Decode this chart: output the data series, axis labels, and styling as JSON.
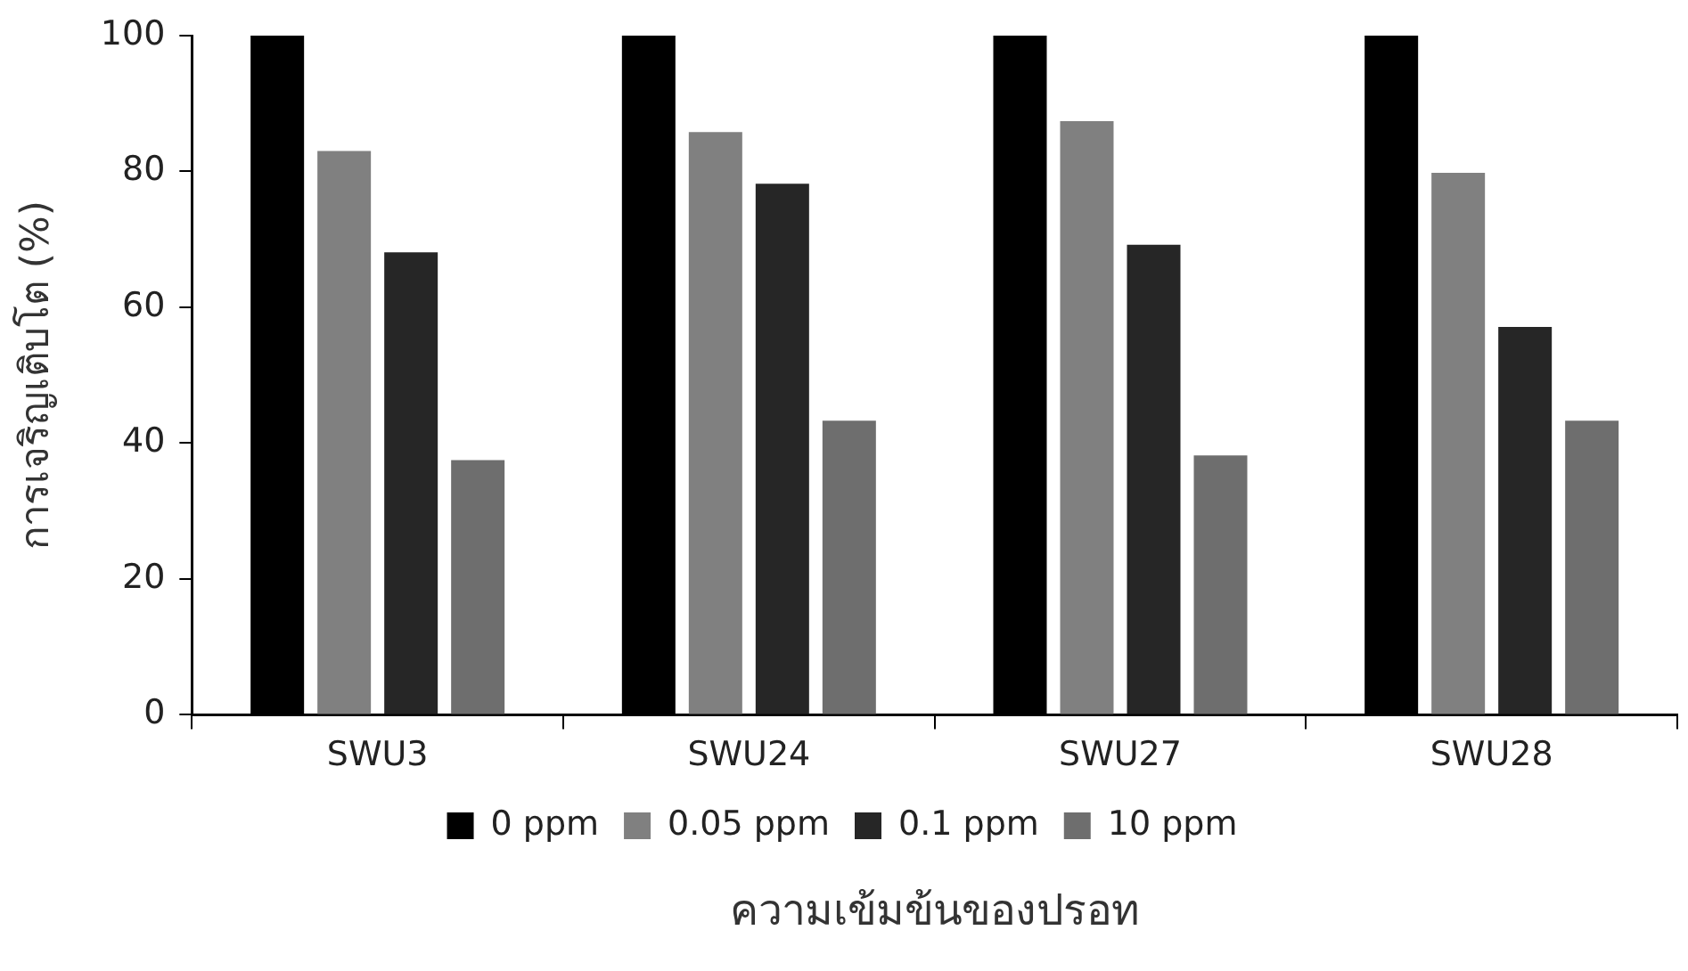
{
  "chart_data": {
    "type": "bar",
    "xlabel": "ความเข้มข้นของปรอท",
    "ylabel": "การเจริญเติบโต (%)",
    "categories": [
      "SWU3",
      "SWU24",
      "SWU27",
      "SWU28"
    ],
    "series": [
      {
        "name": "0 ppm",
        "color": "#000000",
        "values": [
          100,
          100,
          100,
          100
        ]
      },
      {
        "name": "0.05 ppm",
        "color": "#808080",
        "values": [
          83,
          85.8,
          87.4,
          79.8
        ]
      },
      {
        "name": "0.1 ppm",
        "color": "#262626",
        "values": [
          68.1,
          78.2,
          69.2,
          57.1
        ]
      },
      {
        "name": "10 ppm",
        "color": "#6e6e6e",
        "values": [
          37.5,
          43.3,
          38.2,
          43.3
        ]
      }
    ],
    "ylim": [
      0,
      100
    ],
    "yticks": [
      0,
      20,
      40,
      60,
      80,
      100
    ],
    "grid": false,
    "legend": "bottom"
  }
}
